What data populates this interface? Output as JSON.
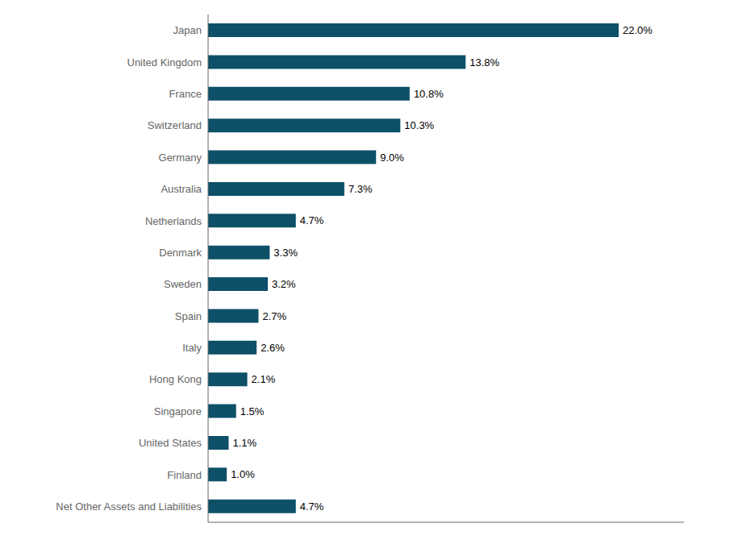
{
  "chart_data": {
    "type": "bar",
    "orientation": "horizontal",
    "categories": [
      "Net Other Assets and Liabilities",
      "Finland",
      "United States",
      "Singapore",
      "Hong Kong",
      "Italy",
      "Spain",
      "Sweden",
      "Denmark",
      "Netherlands",
      "Australia",
      "Germany",
      "Switzerland",
      "France",
      "United Kingdom",
      "Japan"
    ],
    "values": [
      4.7,
      1.0,
      1.1,
      1.5,
      2.1,
      2.6,
      2.7,
      3.2,
      3.3,
      4.7,
      7.3,
      9.0,
      10.3,
      10.8,
      13.8,
      22.0
    ],
    "value_labels": [
      "4.7%",
      "1.0%",
      "1.1%",
      "1.5%",
      "2.1%",
      "2.6%",
      "2.7%",
      "3.2%",
      "3.3%",
      "4.7%",
      "7.3%",
      "9.0%",
      "10.3%",
      "10.8%",
      "13.8%",
      "22.0%"
    ],
    "color": "#0d5068",
    "xlim": [
      0,
      25.5
    ],
    "data_labels": true,
    "tick_labels": "y",
    "grid": false
  }
}
